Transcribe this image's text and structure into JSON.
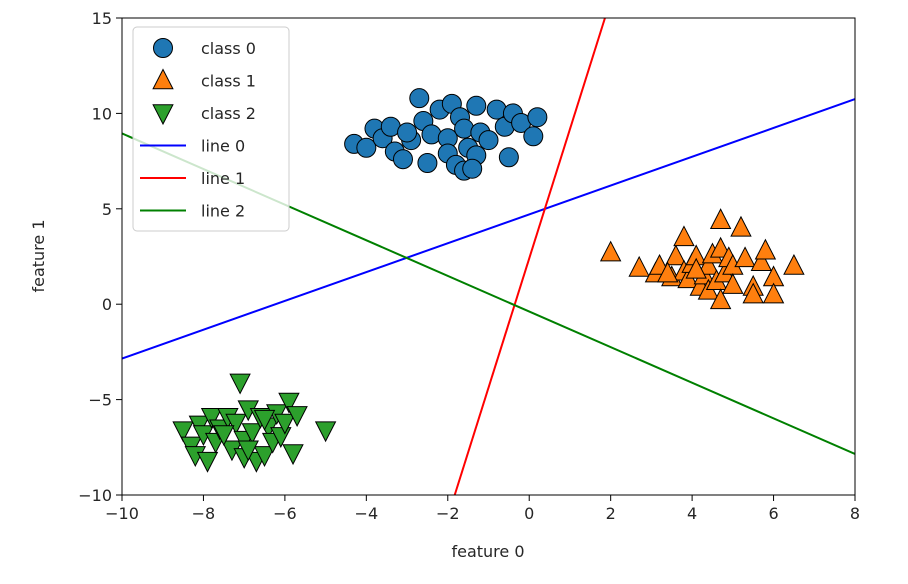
{
  "chart_data": {
    "type": "scatter",
    "title": "",
    "xlabel": "feature 0",
    "ylabel": "feature 1",
    "xlim": [
      -10,
      8
    ],
    "ylim": [
      -10,
      15
    ],
    "xticks": [
      "−10",
      "−8",
      "−6",
      "−4",
      "−2",
      "0",
      "2",
      "4",
      "6",
      "8"
    ],
    "yticks": [
      "−10",
      "−5",
      "0",
      "5",
      "10",
      "15"
    ],
    "grid": false,
    "legend_position": "top-left",
    "series": [
      {
        "name": "class 0",
        "kind": "points",
        "marker": "circle",
        "color": "#1f77b4",
        "points": [
          [
            -4.3,
            8.4
          ],
          [
            -4.0,
            8.2
          ],
          [
            -3.8,
            9.2
          ],
          [
            -3.6,
            8.7
          ],
          [
            -3.4,
            9.3
          ],
          [
            -3.3,
            8.0
          ],
          [
            -3.1,
            7.6
          ],
          [
            -2.9,
            8.6
          ],
          [
            -2.7,
            10.8
          ],
          [
            -2.6,
            9.6
          ],
          [
            -2.4,
            8.9
          ],
          [
            -2.2,
            10.2
          ],
          [
            -2.0,
            8.7
          ],
          [
            -1.9,
            10.5
          ],
          [
            -1.7,
            9.8
          ],
          [
            -1.6,
            9.2
          ],
          [
            -1.5,
            8.2
          ],
          [
            -1.3,
            10.4
          ],
          [
            -1.2,
            9.0
          ],
          [
            -1.0,
            8.6
          ],
          [
            -0.8,
            10.2
          ],
          [
            -0.6,
            9.3
          ],
          [
            -0.4,
            10.0
          ],
          [
            -0.2,
            9.5
          ],
          [
            0.2,
            9.8
          ],
          [
            -2.0,
            7.9
          ],
          [
            -1.8,
            7.3
          ],
          [
            -1.6,
            7.0
          ],
          [
            -1.3,
            7.8
          ],
          [
            -0.5,
            7.7
          ],
          [
            0.1,
            8.8
          ],
          [
            -2.5,
            7.4
          ],
          [
            -3.0,
            9.0
          ],
          [
            -1.4,
            7.1
          ]
        ]
      },
      {
        "name": "class 1",
        "kind": "points",
        "marker": "triangle-up",
        "color": "#ff7f0e",
        "points": [
          [
            2.0,
            2.7
          ],
          [
            2.7,
            1.9
          ],
          [
            3.1,
            1.6
          ],
          [
            3.2,
            2.0
          ],
          [
            3.5,
            1.4
          ],
          [
            3.6,
            2.5
          ],
          [
            3.8,
            1.7
          ],
          [
            3.8,
            3.5
          ],
          [
            3.9,
            1.3
          ],
          [
            4.0,
            2.1
          ],
          [
            4.1,
            2.5
          ],
          [
            4.2,
            0.9
          ],
          [
            4.3,
            1.5
          ],
          [
            4.4,
            2.0
          ],
          [
            4.4,
            0.7
          ],
          [
            4.5,
            2.6
          ],
          [
            4.6,
            1.2
          ],
          [
            4.7,
            4.4
          ],
          [
            4.7,
            2.9
          ],
          [
            4.7,
            0.2
          ],
          [
            4.8,
            1.6
          ],
          [
            4.9,
            2.4
          ],
          [
            5.0,
            2.0
          ],
          [
            5.0,
            1.0
          ],
          [
            5.2,
            4.0
          ],
          [
            5.3,
            2.4
          ],
          [
            5.5,
            0.9
          ],
          [
            5.5,
            0.5
          ],
          [
            5.7,
            2.2
          ],
          [
            5.8,
            2.8
          ],
          [
            6.0,
            1.4
          ],
          [
            6.0,
            0.5
          ],
          [
            6.5,
            2.0
          ],
          [
            3.4,
            1.6
          ],
          [
            4.1,
            1.8
          ]
        ]
      },
      {
        "name": "class 2",
        "kind": "points",
        "marker": "triangle-down",
        "color": "#2ca02c",
        "points": [
          [
            -8.5,
            -6.6
          ],
          [
            -8.3,
            -7.4
          ],
          [
            -8.2,
            -7.9
          ],
          [
            -8.1,
            -6.3
          ],
          [
            -8.0,
            -6.8
          ],
          [
            -7.9,
            -8.2
          ],
          [
            -7.8,
            -5.9
          ],
          [
            -7.7,
            -7.2
          ],
          [
            -7.6,
            -6.5
          ],
          [
            -7.4,
            -5.9
          ],
          [
            -7.3,
            -7.6
          ],
          [
            -7.2,
            -6.2
          ],
          [
            -7.1,
            -4.1
          ],
          [
            -7.0,
            -7.1
          ],
          [
            -6.9,
            -5.5
          ],
          [
            -6.8,
            -6.7
          ],
          [
            -6.7,
            -8.2
          ],
          [
            -6.6,
            -5.9
          ],
          [
            -6.5,
            -7.9
          ],
          [
            -6.4,
            -6.4
          ],
          [
            -6.3,
            -7.2
          ],
          [
            -6.2,
            -5.7
          ],
          [
            -6.1,
            -6.9
          ],
          [
            -6.0,
            -6.2
          ],
          [
            -5.9,
            -5.1
          ],
          [
            -5.8,
            -7.8
          ],
          [
            -5.7,
            -5.8
          ],
          [
            -5.0,
            -6.6
          ],
          [
            -7.5,
            -6.8
          ],
          [
            -7.0,
            -8.0
          ],
          [
            -6.9,
            -7.6
          ],
          [
            -6.5,
            -6.0
          ]
        ]
      },
      {
        "name": "line 0",
        "kind": "line",
        "color": "#0000ff",
        "x": [
          -10,
          8
        ],
        "y": [
          -2.85,
          10.75
        ]
      },
      {
        "name": "line 1",
        "kind": "line",
        "color": "#ff0000",
        "x": [
          -1.83,
          1.86
        ],
        "y": [
          -10,
          15
        ]
      },
      {
        "name": "line 2",
        "kind": "line",
        "color": "#008000",
        "x": [
          -10,
          8
        ],
        "y": [
          8.95,
          -7.85
        ]
      }
    ]
  }
}
